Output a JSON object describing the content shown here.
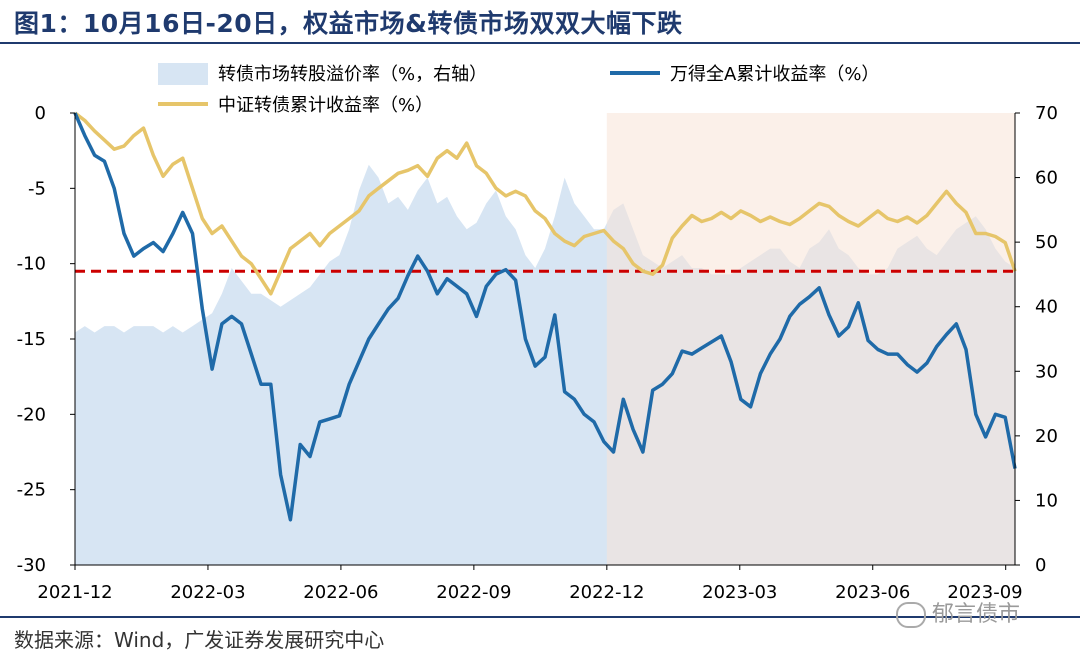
{
  "title": "图1：10月16日-20日，权益市场&转债市场双双大幅下跌",
  "source": "数据来源：Wind，广发证券发展研究中心",
  "watermark": "郁言债市",
  "chart_data": {
    "type": "line",
    "x_ticks": [
      "2021-12",
      "2022-03",
      "2022-06",
      "2022-09",
      "2022-12",
      "2023-03",
      "2023-06",
      "2023-09"
    ],
    "y_left_ticks": [
      "0",
      "-5",
      "-10",
      "-15",
      "-20",
      "-25",
      "-30"
    ],
    "y_right_ticks": [
      "70",
      "60",
      "50",
      "40",
      "30",
      "20",
      "10",
      "0"
    ],
    "ylim_left": [
      -30,
      0
    ],
    "ylim_right": [
      0,
      70
    ],
    "reference_line_left": -10.5,
    "grid": false,
    "legend_position": "top",
    "colors": {
      "premium": "#d7e5f3",
      "wande": "#1f6aa8",
      "zz": "#e6c56a",
      "refline": "#cc0000",
      "shade": "#f7e3d7",
      "title": "#1f3a6e"
    },
    "series": [
      {
        "name": "转债市场转股溢价率（%，右轴）",
        "axis": "right",
        "style": "area",
        "values": [
          36,
          37,
          36,
          37,
          37,
          36,
          37,
          37,
          37,
          36,
          37,
          36,
          37,
          38,
          39,
          42,
          46,
          44,
          42,
          42,
          41,
          40,
          41,
          42,
          43,
          45,
          47,
          48,
          52,
          58,
          62,
          60,
          56,
          57,
          55,
          58,
          60,
          56,
          57,
          54,
          52,
          53,
          56,
          58,
          54,
          52,
          48,
          46,
          49,
          54,
          60,
          56,
          54,
          52,
          52,
          55,
          56,
          52,
          48,
          47,
          46,
          47,
          48,
          46,
          46,
          45,
          45,
          45,
          46,
          47,
          48,
          49,
          49,
          47,
          46,
          49,
          50,
          52,
          49,
          48,
          46,
          45,
          45,
          46,
          49,
          50,
          51,
          49,
          48,
          50,
          52,
          53,
          54,
          52,
          49,
          47,
          46
        ]
      },
      {
        "name": "万得全A累计收益率（%）",
        "axis": "left",
        "style": "line",
        "values": [
          0,
          -1.5,
          -2.8,
          -3.2,
          -5,
          -8,
          -9.5,
          -9,
          -8.6,
          -9.2,
          -8,
          -6.6,
          -8,
          -13,
          -17,
          -14,
          -13.5,
          -14,
          -16,
          -18,
          -18,
          -24,
          -27,
          -22,
          -22.8,
          -20.5,
          -20.3,
          -20.1,
          -18,
          -16.5,
          -15,
          -14,
          -13,
          -12.3,
          -10.8,
          -9.5,
          -10.5,
          -12,
          -11,
          -11.5,
          -12,
          -13.5,
          -11.5,
          -10.7,
          -10.4,
          -11.1,
          -15,
          -16.8,
          -16.2,
          -13.4,
          -18.5,
          -19,
          -20,
          -20.5,
          -21.8,
          -22.5,
          -19,
          -21,
          -22.5,
          -18.4,
          -18,
          -17.3,
          -15.8,
          -16,
          -15.6,
          -15.2,
          -14.8,
          -16.5,
          -19,
          -19.5,
          -17.3,
          -16,
          -15,
          -13.5,
          -12.7,
          -12.2,
          -11.6,
          -13.4,
          -14.8,
          -14.2,
          -12.6,
          -15.1,
          -15.7,
          -16,
          -16,
          -16.7,
          -17.2,
          -16.6,
          -15.5,
          -14.7,
          -14,
          -15.7,
          -20,
          -21.5,
          -20,
          -20.2,
          -23.6
        ]
      },
      {
        "name": "中证转债累计收益率（%）",
        "axis": "left",
        "style": "line",
        "values": [
          0,
          -0.5,
          -1.2,
          -1.8,
          -2.4,
          -2.2,
          -1.5,
          -1.0,
          -2.8,
          -4.2,
          -3.4,
          -3.0,
          -5.0,
          -7.0,
          -8.0,
          -7.5,
          -8.5,
          -9.5,
          -10.0,
          -11.0,
          -12.0,
          -10.5,
          -9.0,
          -8.5,
          -8.0,
          -8.8,
          -8.0,
          -7.5,
          -7.0,
          -6.5,
          -5.5,
          -5.0,
          -4.5,
          -4.0,
          -3.8,
          -3.5,
          -4.2,
          -3.0,
          -2.5,
          -3.0,
          -2.0,
          -3.5,
          -4.0,
          -5.0,
          -5.5,
          -5.2,
          -5.5,
          -6.5,
          -7.0,
          -8.0,
          -8.5,
          -8.8,
          -8.2,
          -8.0,
          -7.8,
          -8.5,
          -9.0,
          -10.0,
          -10.5,
          -10.7,
          -10.1,
          -8.3,
          -7.5,
          -6.8,
          -7.2,
          -7.0,
          -6.6,
          -7.0,
          -6.5,
          -6.8,
          -7.2,
          -6.9,
          -7.2,
          -7.4,
          -7.0,
          -6.5,
          -6.0,
          -6.2,
          -6.8,
          -7.2,
          -7.5,
          -7.0,
          -6.5,
          -7.0,
          -7.2,
          -6.9,
          -7.3,
          -6.8,
          -6.0,
          -5.2,
          -6.0,
          -6.6,
          -8.0,
          -8.0,
          -8.2,
          -8.6,
          -10.5
        ]
      }
    ]
  }
}
